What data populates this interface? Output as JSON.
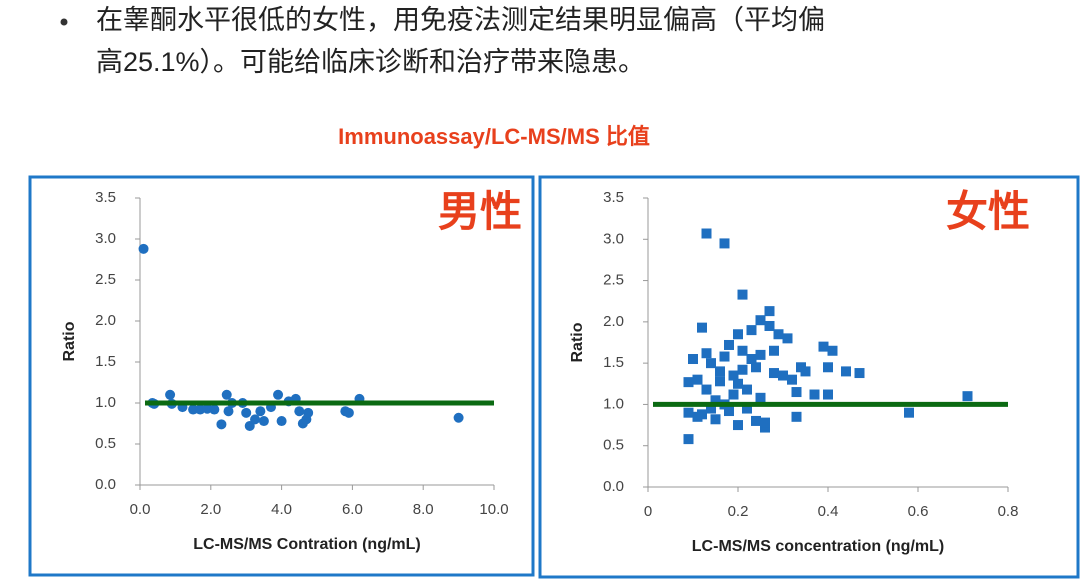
{
  "bullet": [
    "在睾酮水平很低的女性，用免疫法测定结果明显偏高（平均偏",
    "高25.1%）。可能给临床诊断和治疗带来隐患。"
  ],
  "heading": "Immunoassay/LC-MS/MS 比值",
  "chart_data": [
    {
      "type": "scatter",
      "annotation": "男性",
      "x_label": "LC-MS/MS Contration (ng/mL)",
      "y_label": "Ratio",
      "marker": "circle",
      "color": "#1f6fc0",
      "reference_line": 1,
      "reference_color": "#0b6a12",
      "grid": false,
      "xlim": [
        0,
        10
      ],
      "xticks": [
        {
          "value": 0,
          "label": "0.0"
        },
        {
          "value": 2,
          "label": "2.0"
        },
        {
          "value": 4,
          "label": "4.0"
        },
        {
          "value": 6,
          "label": "6.0"
        },
        {
          "value": 8,
          "label": "8.0"
        },
        {
          "value": 10,
          "label": "10.0"
        }
      ],
      "ylim": [
        0,
        3.5
      ],
      "yticks": [
        {
          "value": 0,
          "label": "0.0"
        },
        0.5,
        {
          "value": 1,
          "label": "1.0"
        },
        1.5,
        {
          "value": 2,
          "label": "2.0"
        },
        2.5,
        {
          "value": 3,
          "label": "3.0"
        },
        3.5
      ],
      "x": [
        0.1,
        0.35,
        0.4,
        0.85,
        0.9,
        1.2,
        1.5,
        1.7,
        1.9,
        2.1,
        2.3,
        2.45,
        2.5,
        2.6,
        2.9,
        3.0,
        3.1,
        3.25,
        3.4,
        3.5,
        3.7,
        3.9,
        4.0,
        4.2,
        4.4,
        4.5,
        4.6,
        4.7,
        4.75,
        5.8,
        5.9,
        6.2,
        9.0
      ],
      "values": [
        2.88,
        1.0,
        0.99,
        1.1,
        0.99,
        0.95,
        0.92,
        0.92,
        0.93,
        0.92,
        0.74,
        1.1,
        0.9,
        1.0,
        1.0,
        0.88,
        0.72,
        0.8,
        0.9,
        0.78,
        0.95,
        1.1,
        0.78,
        1.02,
        1.05,
        0.9,
        0.75,
        0.8,
        0.88,
        0.9,
        0.88,
        1.05,
        0.82
      ]
    },
    {
      "type": "scatter",
      "annotation": "女性",
      "x_label": "LC-MS/MS concentration (ng/mL)",
      "y_label": "Ratio",
      "marker": "square",
      "color": "#1f6fc0",
      "reference_line": 1,
      "reference_color": "#0b6a12",
      "grid": false,
      "xlim": [
        0,
        0.8
      ],
      "xticks": [
        0,
        0.2,
        0.4,
        0.6,
        0.8
      ],
      "ylim": [
        0,
        3.5
      ],
      "yticks": [
        {
          "value": 0,
          "label": "0.0"
        },
        0.5,
        {
          "value": 1,
          "label": "1.0"
        },
        1.5,
        {
          "value": 2,
          "label": "2.0"
        },
        2.5,
        {
          "value": 3,
          "label": "3.0"
        },
        3.5
      ],
      "x": [
        0.09,
        0.09,
        0.09,
        0.1,
        0.11,
        0.11,
        0.12,
        0.12,
        0.13,
        0.13,
        0.13,
        0.14,
        0.14,
        0.15,
        0.15,
        0.16,
        0.16,
        0.17,
        0.17,
        0.17,
        0.18,
        0.18,
        0.19,
        0.19,
        0.2,
        0.2,
        0.2,
        0.21,
        0.21,
        0.21,
        0.22,
        0.22,
        0.23,
        0.23,
        0.24,
        0.24,
        0.25,
        0.25,
        0.25,
        0.26,
        0.26,
        0.27,
        0.27,
        0.28,
        0.28,
        0.29,
        0.3,
        0.31,
        0.32,
        0.33,
        0.33,
        0.34,
        0.35,
        0.37,
        0.39,
        0.4,
        0.4,
        0.41,
        0.44,
        0.47,
        0.58,
        0.71
      ],
      "values": [
        0.58,
        0.9,
        1.27,
        1.55,
        0.85,
        1.3,
        1.93,
        0.88,
        3.07,
        1.62,
        1.18,
        1.5,
        0.95,
        1.05,
        0.82,
        1.4,
        1.28,
        2.95,
        1.58,
        1.0,
        0.92,
        1.72,
        1.35,
        1.12,
        1.85,
        1.25,
        0.75,
        1.65,
        1.42,
        2.33,
        1.18,
        0.95,
        1.55,
        1.9,
        1.45,
        0.8,
        2.02,
        1.6,
        1.08,
        0.72,
        0.78,
        2.13,
        1.95,
        1.38,
        1.65,
        1.85,
        1.35,
        1.8,
        1.3,
        1.15,
        0.85,
        1.45,
        1.4,
        1.12,
        1.7,
        1.45,
        1.12,
        1.65,
        1.4,
        1.38,
        0.9,
        1.1
      ]
    }
  ]
}
